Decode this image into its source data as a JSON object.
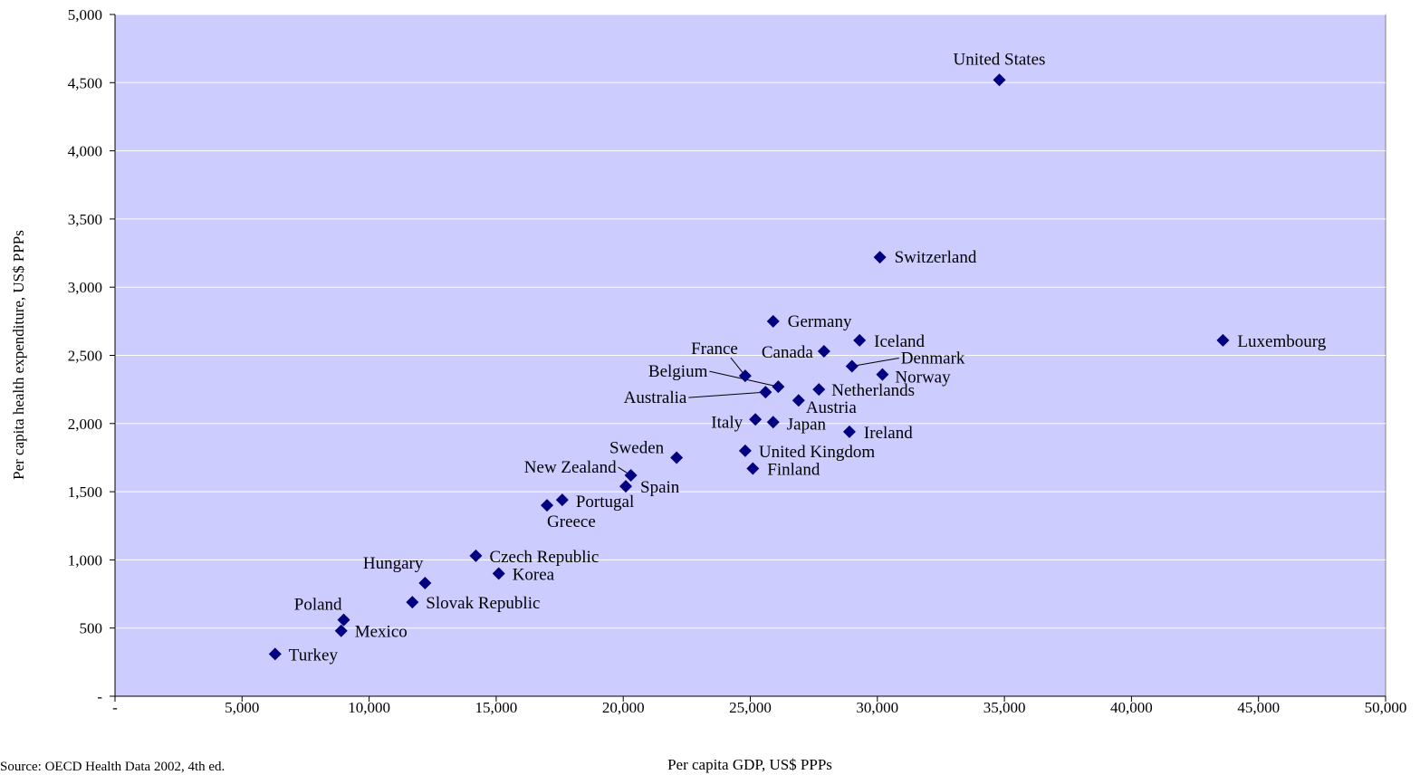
{
  "chart_data": {
    "type": "scatter",
    "title": "",
    "xlabel": "Per capita GDP, US$ PPPs",
    "ylabel": "Per capita health expenditure, US$ PPPs",
    "xlim": [
      0,
      50000
    ],
    "ylim": [
      0,
      5000
    ],
    "x_ticks": [
      {
        "value": 0,
        "label": "-"
      },
      {
        "value": 5000,
        "label": "5,000"
      },
      {
        "value": 10000,
        "label": "10,000"
      },
      {
        "value": 15000,
        "label": "15,000"
      },
      {
        "value": 20000,
        "label": "20,000"
      },
      {
        "value": 25000,
        "label": "25,000"
      },
      {
        "value": 30000,
        "label": "30,000"
      },
      {
        "value": 35000,
        "label": "35,000"
      },
      {
        "value": 40000,
        "label": "40,000"
      },
      {
        "value": 45000,
        "label": "45,000"
      },
      {
        "value": 50000,
        "label": "50,000"
      }
    ],
    "y_ticks": [
      {
        "value": 0,
        "label": "-"
      },
      {
        "value": 500,
        "label": "500"
      },
      {
        "value": 1000,
        "label": "1,000"
      },
      {
        "value": 1500,
        "label": "1,500"
      },
      {
        "value": 2000,
        "label": "2,000"
      },
      {
        "value": 2500,
        "label": "2,500"
      },
      {
        "value": 3000,
        "label": "3,000"
      },
      {
        "value": 3500,
        "label": "3,500"
      },
      {
        "value": 4000,
        "label": "4,000"
      },
      {
        "value": 4500,
        "label": "4,500"
      },
      {
        "value": 5000,
        "label": "5,000"
      }
    ],
    "grid": "horizontal",
    "legend": "none",
    "colors": {
      "plot_area": "#ccccff",
      "marker": "#000080",
      "gridline": "#ffffff"
    },
    "points": [
      {
        "label": "United States",
        "x": 34800,
        "y": 4520
      },
      {
        "label": "Switzerland",
        "x": 30100,
        "y": 3220
      },
      {
        "label": "Luxembourg",
        "x": 43600,
        "y": 2610
      },
      {
        "label": "Germany",
        "x": 25900,
        "y": 2750
      },
      {
        "label": "Iceland",
        "x": 29300,
        "y": 2610
      },
      {
        "label": "Canada",
        "x": 27900,
        "y": 2530
      },
      {
        "label": "Denmark",
        "x": 29000,
        "y": 2420
      },
      {
        "label": "Norway",
        "x": 30200,
        "y": 2360
      },
      {
        "label": "France",
        "x": 24800,
        "y": 2350
      },
      {
        "label": "Belgium",
        "x": 26100,
        "y": 2270
      },
      {
        "label": "Australia",
        "x": 25600,
        "y": 2230
      },
      {
        "label": "Netherlands",
        "x": 27700,
        "y": 2250
      },
      {
        "label": "Austria",
        "x": 26900,
        "y": 2170
      },
      {
        "label": "Italy",
        "x": 25200,
        "y": 2030
      },
      {
        "label": "Japan",
        "x": 25900,
        "y": 2010
      },
      {
        "label": "Ireland",
        "x": 28900,
        "y": 1940
      },
      {
        "label": "Sweden",
        "x": 22100,
        "y": 1750
      },
      {
        "label": "United Kingdom",
        "x": 24800,
        "y": 1800
      },
      {
        "label": "Finland",
        "x": 25100,
        "y": 1670
      },
      {
        "label": "New Zealand",
        "x": 20300,
        "y": 1620
      },
      {
        "label": "Spain",
        "x": 20100,
        "y": 1540
      },
      {
        "label": "Portugal",
        "x": 17600,
        "y": 1440
      },
      {
        "label": "Greece",
        "x": 17000,
        "y": 1400
      },
      {
        "label": "Czech Republic",
        "x": 14200,
        "y": 1030
      },
      {
        "label": "Korea",
        "x": 15100,
        "y": 900
      },
      {
        "label": "Hungary",
        "x": 12200,
        "y": 830
      },
      {
        "label": "Slovak Republic",
        "x": 11700,
        "y": 690
      },
      {
        "label": "Poland",
        "x": 9000,
        "y": 560
      },
      {
        "label": "Mexico",
        "x": 8900,
        "y": 480
      },
      {
        "label": "Turkey",
        "x": 6300,
        "y": 310
      }
    ]
  },
  "source_note": "Source: OECD Health Data 2002, 4th ed."
}
